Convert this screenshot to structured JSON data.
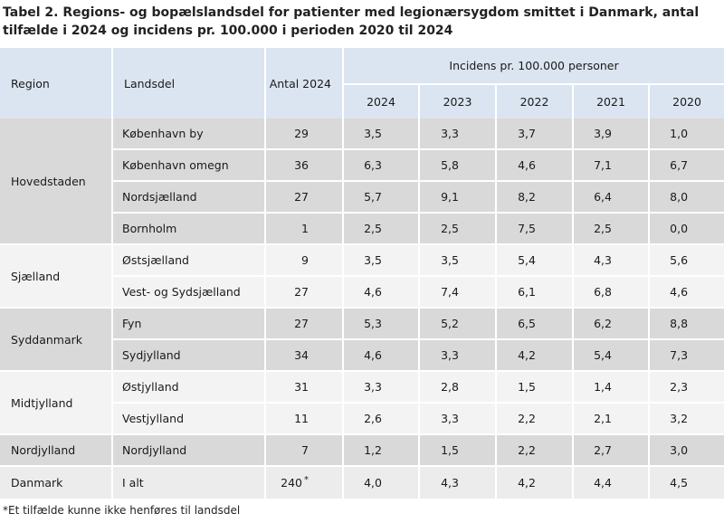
{
  "title": "Tabel 2. Regions- og bopælslandsdel for patienter med legionærsygdom smittet i Danmark, antal tilfælde i 2024 og incidens pr. 100.000 i perioden 2020 til 2024",
  "headers": {
    "region": "Region",
    "landsdel": "Landsdel",
    "antal": "Antal 2024",
    "incidens": "Incidens pr. 100.000 personer",
    "years": [
      "2024",
      "2023",
      "2022",
      "2021",
      "2020"
    ]
  },
  "groups": [
    {
      "region": "Hovedstaden",
      "rows": [
        {
          "landsdel": "København by",
          "antal": "29",
          "values": [
            "3,5",
            "3,3",
            "3,7",
            "3,9",
            "1,0"
          ]
        },
        {
          "landsdel": "København omegn",
          "antal": "36",
          "values": [
            "6,3",
            "5,8",
            "4,6",
            "7,1",
            "6,7"
          ]
        },
        {
          "landsdel": "Nordsjælland",
          "antal": "27",
          "values": [
            "5,7",
            "9,1",
            "8,2",
            "6,4",
            "8,0"
          ]
        },
        {
          "landsdel": "Bornholm",
          "antal": "1",
          "values": [
            "2,5",
            "2,5",
            "7,5",
            "2,5",
            "0,0"
          ]
        }
      ]
    },
    {
      "region": "Sjælland",
      "rows": [
        {
          "landsdel": "Østsjælland",
          "antal": "9",
          "values": [
            "3,5",
            "3,5",
            "5,4",
            "4,3",
            "5,6"
          ]
        },
        {
          "landsdel": "Vest- og Sydsjælland",
          "antal": "27",
          "values": [
            "4,6",
            "7,4",
            "6,1",
            "6,8",
            "4,6"
          ]
        }
      ]
    },
    {
      "region": "Syddanmark",
      "rows": [
        {
          "landsdel": "Fyn",
          "antal": "27",
          "values": [
            "5,3",
            "5,2",
            "6,5",
            "6,2",
            "8,8"
          ]
        },
        {
          "landsdel": "Sydjylland",
          "antal": "34",
          "values": [
            "4,6",
            "3,3",
            "4,2",
            "5,4",
            "7,3"
          ]
        }
      ]
    },
    {
      "region": "Midtjylland",
      "rows": [
        {
          "landsdel": "Østjylland",
          "antal": "31",
          "values": [
            "3,3",
            "2,8",
            "1,5",
            "1,4",
            "2,3"
          ]
        },
        {
          "landsdel": "Vestjylland",
          "antal": "11",
          "values": [
            "2,6",
            "3,3",
            "2,2",
            "2,1",
            "3,2"
          ]
        }
      ]
    },
    {
      "region": "Nordjylland",
      "rows": [
        {
          "landsdel": "Nordjylland",
          "antal": "7",
          "values": [
            "1,2",
            "1,5",
            "2,2",
            "2,7",
            "3,0"
          ]
        }
      ]
    }
  ],
  "total": {
    "region": "Danmark",
    "landsdel": "I alt",
    "antal": "240",
    "antal_mark": "*",
    "values": [
      "4,0",
      "4,3",
      "4,2",
      "4,4",
      "4,5"
    ]
  },
  "footnote": "*Et tilfælde kunne ikke henføres til landsdel"
}
